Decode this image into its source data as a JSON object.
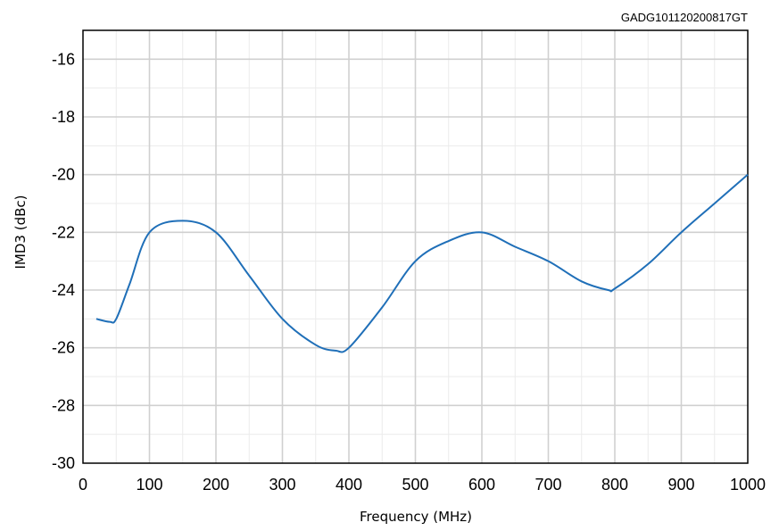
{
  "figure_id": "GADG101120200817GT",
  "chart_data": {
    "type": "line",
    "xlabel": "Frequency (MHz)",
    "ylabel": "IMD3 (dBc)",
    "xlim": [
      0,
      1000
    ],
    "ylim": [
      -30,
      -15
    ],
    "xticks": [
      0,
      100,
      200,
      300,
      400,
      500,
      600,
      700,
      800,
      900,
      1000
    ],
    "yticks": [
      -30,
      -28,
      -26,
      -24,
      -22,
      -20,
      -18,
      -16
    ],
    "grid": true,
    "legend": "none",
    "series": [
      {
        "color": "#1f6fb8",
        "x": [
          20,
          40,
          50,
          70,
          100,
          150,
          200,
          250,
          300,
          350,
          380,
          400,
          450,
          500,
          550,
          600,
          650,
          700,
          750,
          790,
          800,
          850,
          900,
          950,
          1000
        ],
        "y": [
          -25.0,
          -25.1,
          -25.0,
          -23.8,
          -22.0,
          -21.6,
          -22.0,
          -23.5,
          -25.0,
          -25.9,
          -26.1,
          -26.0,
          -24.6,
          -23.0,
          -22.3,
          -22.0,
          -22.5,
          -23.0,
          -23.7,
          -24.0,
          -23.95,
          -23.1,
          -22.0,
          -21.0,
          -20.0
        ]
      }
    ]
  }
}
